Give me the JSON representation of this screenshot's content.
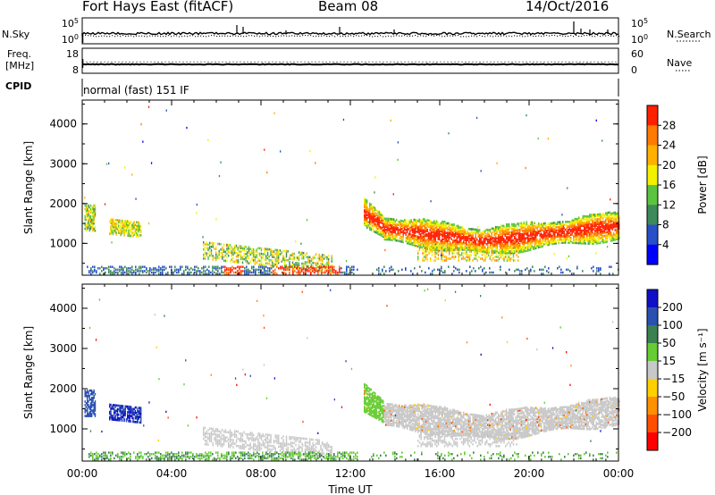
{
  "header": {
    "station": "Fort Hays East (fitACF)",
    "beam": "Beam 08",
    "date": "14/Oct/2016"
  },
  "left_labels": {
    "nsky": "N.Sky",
    "freq_line1": "Freq.",
    "freq_line2": "[MHz]",
    "cpid": "CPID"
  },
  "right_labels": {
    "nsearch": "N.Search",
    "nave": "Nave"
  },
  "mode": "normal (fast) 151 IF",
  "chart_data": [
    {
      "name": "noise",
      "type": "line",
      "left_ticks": [
        "10^5",
        "10^0"
      ],
      "right_ticks": [
        "10^5",
        "10^0"
      ]
    },
    {
      "name": "freq",
      "type": "line",
      "left_ticks": [
        "18",
        "8"
      ],
      "right_ticks": [
        "60",
        "0"
      ]
    },
    {
      "name": "power",
      "type": "heatmap",
      "ylabel": "Slant Range [km]",
      "yticks": [
        "1000",
        "2000",
        "3000",
        "4000"
      ],
      "ylim": [
        200,
        4600
      ],
      "colorbar": {
        "label": "Power [dB]",
        "ticks": [
          "4",
          "8",
          "12",
          "16",
          "20",
          "24",
          "28"
        ],
        "colors": [
          "#0000ff",
          "#2750c8",
          "#3c8a5a",
          "#5bc43e",
          "#f2f200",
          "#ffb000",
          "#ff7a00",
          "#ff2000"
        ]
      }
    },
    {
      "name": "velocity",
      "type": "heatmap",
      "ylabel": "Slant Range [km]",
      "yticks": [
        "1000",
        "2000",
        "3000",
        "4000"
      ],
      "ylim": [
        200,
        4600
      ],
      "xlabel": "Time UT",
      "xticks": [
        "00:00",
        "04:00",
        "08:00",
        "12:00",
        "16:00",
        "20:00",
        "00:00"
      ],
      "colorbar": {
        "label": "Velocity [m s⁻¹]",
        "ticks": [
          "200",
          "100",
          "50",
          "15",
          "−15",
          "−50",
          "−100",
          "−200"
        ],
        "colors": [
          "#1010c8",
          "#2a50b0",
          "#3a8050",
          "#66cc33",
          "#c8c8c8",
          "#ffd000",
          "#ff9000",
          "#ff5000",
          "#ff0000"
        ]
      }
    }
  ]
}
